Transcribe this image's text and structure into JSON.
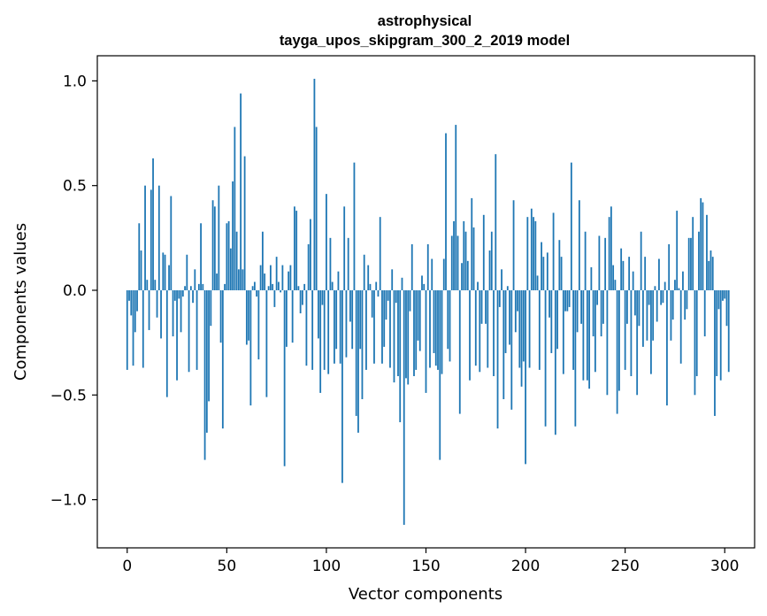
{
  "chart_data": {
    "type": "bar",
    "title": "astrophysical",
    "subtitle": "tayga_upos_skipgram_300_2_2019 model",
    "xlabel": "Vector components",
    "ylabel": "Components values",
    "xlim": [
      -15,
      315
    ],
    "ylim": [
      -1.23,
      1.12
    ],
    "xticks": [
      0,
      50,
      100,
      150,
      200,
      250,
      300
    ],
    "xtick_labels": [
      "0",
      "50",
      "100",
      "150",
      "200",
      "250",
      "300"
    ],
    "yticks": [
      -1.0,
      -0.5,
      0.0,
      0.5,
      1.0
    ],
    "ytick_labels": [
      "−1.0",
      "−0.5",
      "0.0",
      "0.5",
      "1.0"
    ],
    "grid": false,
    "bar_color": "#1f77b4",
    "values": [
      -0.38,
      -0.05,
      -0.12,
      -0.36,
      -0.2,
      -0.1,
      0.32,
      0.19,
      -0.37,
      0.5,
      0.05,
      -0.19,
      0.48,
      0.63,
      0.05,
      -0.13,
      0.5,
      -0.23,
      0.18,
      0.17,
      -0.51,
      0.12,
      0.45,
      -0.22,
      -0.05,
      -0.43,
      -0.04,
      -0.2,
      -0.03,
      0.02,
      0.17,
      -0.39,
      0.02,
      -0.06,
      0.1,
      -0.38,
      0.03,
      0.32,
      0.03,
      -0.81,
      -0.68,
      -0.53,
      -0.17,
      0.43,
      0.4,
      0.08,
      0.5,
      -0.25,
      -0.66,
      0.03,
      0.32,
      0.33,
      0.2,
      0.52,
      0.78,
      0.28,
      0.1,
      0.94,
      0.1,
      0.64,
      -0.26,
      -0.24,
      -0.55,
      0.02,
      0.04,
      -0.03,
      -0.33,
      0.12,
      0.28,
      0.08,
      -0.51,
      0.02,
      0.12,
      0.03,
      -0.08,
      0.16,
      0.04,
      -0.01,
      0.12,
      -0.84,
      -0.27,
      0.09,
      0.12,
      -0.25,
      0.4,
      0.38,
      0.02,
      -0.11,
      -0.07,
      0.03,
      -0.36,
      0.22,
      0.34,
      -0.38,
      1.01,
      0.78,
      -0.23,
      -0.49,
      -0.07,
      -0.38,
      0.46,
      -0.4,
      0.25,
      0.04,
      -0.35,
      -0.28,
      0.09,
      -0.35,
      -0.92,
      0.4,
      -0.32,
      0.25,
      -0.15,
      -0.28,
      0.61,
      -0.6,
      -0.68,
      -0.28,
      -0.52,
      0.17,
      -0.38,
      0.12,
      0.03,
      -0.13,
      -0.35,
      0.04,
      -0.03,
      0.35,
      -0.35,
      -0.27,
      -0.14,
      -0.05,
      -0.37,
      0.1,
      -0.44,
      -0.06,
      -0.41,
      -0.63,
      0.06,
      -1.12,
      -0.42,
      -0.45,
      -0.1,
      0.22,
      -0.41,
      -0.38,
      -0.24,
      -0.29,
      0.07,
      0.03,
      -0.49,
      0.22,
      -0.37,
      0.15,
      -0.3,
      -0.36,
      -0.38,
      -0.81,
      -0.4,
      0.15,
      0.75,
      -0.28,
      -0.34,
      0.26,
      0.33,
      0.79,
      0.26,
      -0.59,
      0.13,
      0.33,
      0.28,
      0.14,
      -0.43,
      0.44,
      0.3,
      -0.36,
      0.04,
      -0.39,
      -0.16,
      0.36,
      -0.16,
      -0.37,
      0.19,
      0.28,
      -0.41,
      0.65,
      -0.66,
      -0.08,
      0.1,
      -0.52,
      -0.3,
      0.02,
      -0.26,
      -0.57,
      0.43,
      -0.2,
      -0.1,
      -0.37,
      -0.46,
      -0.34,
      -0.83,
      0.35,
      -0.37,
      0.39,
      0.35,
      0.33,
      0.07,
      -0.38,
      0.23,
      0.16,
      -0.65,
      0.18,
      -0.13,
      -0.3,
      0.37,
      -0.69,
      -0.28,
      0.24,
      0.16,
      -0.4,
      -0.1,
      -0.1,
      -0.08,
      0.61,
      -0.38,
      -0.65,
      -0.2,
      0.43,
      -0.16,
      -0.43,
      0.28,
      -0.43,
      -0.47,
      0.11,
      -0.22,
      -0.39,
      -0.07,
      0.26,
      -0.22,
      -0.16,
      0.25,
      -0.5,
      0.35,
      0.4,
      0.12,
      0.05,
      -0.59,
      -0.48,
      0.2,
      0.14,
      -0.38,
      -0.16,
      0.16,
      -0.41,
      0.09,
      -0.12,
      -0.5,
      -0.17,
      0.28,
      -0.27,
      0.16,
      -0.24,
      -0.07,
      -0.4,
      -0.24,
      0.02,
      -0.15,
      0.15,
      -0.07,
      -0.06,
      0.04,
      -0.55,
      0.22,
      -0.24,
      -0.14,
      0.05,
      0.38,
      0.01,
      -0.35,
      0.09,
      -0.14,
      -0.09,
      0.25,
      0.25,
      0.35,
      -0.5,
      -0.41,
      0.28,
      0.44,
      0.42,
      -0.22,
      0.36,
      0.14,
      0.19,
      0.16,
      -0.6,
      -0.41,
      -0.09,
      -0.43,
      -0.05,
      -0.04,
      -0.17,
      -0.39
    ]
  }
}
